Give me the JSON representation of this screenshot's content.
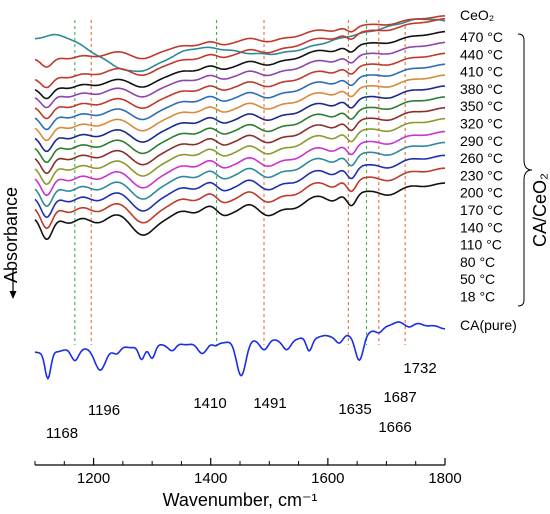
{
  "chart_data": {
    "type": "line",
    "xlabel": "Wavenumber, cm⁻¹",
    "ylabel": "Absorbance",
    "xlim": [
      1100,
      1800
    ],
    "xticks": [
      "1200",
      "1400",
      "1600",
      "1800"
    ],
    "xtick_values": [
      1200,
      1400,
      1600,
      1800
    ],
    "y_axis_ticks": false,
    "grid": false,
    "group_label": "CA/CeO₂",
    "peaks": [
      {
        "label": "1168",
        "x": 1168,
        "line_color": "#4cae4c"
      },
      {
        "label": "1196",
        "x": 1196,
        "line_color": "#e0703c"
      },
      {
        "label": "1410",
        "x": 1410,
        "line_color": "#4cae4c"
      },
      {
        "label": "1491",
        "x": 1491,
        "line_color": "#e0703c"
      },
      {
        "label": "1635",
        "x": 1635,
        "line_color": "#e0703c"
      },
      {
        "label": "1666",
        "x": 1666,
        "line_color": "#4cae4c"
      },
      {
        "label": "1687",
        "x": 1687,
        "line_color": "#e0703c"
      },
      {
        "label": "1732",
        "x": 1732,
        "line_color": "#e0703c"
      }
    ],
    "series": [
      {
        "name": "CeO₂",
        "color": "#2e8a9a",
        "baseline": 1.0,
        "kind": "ceo2"
      },
      {
        "name": "470 °C",
        "color": "#c0392b",
        "baseline": 0.0,
        "kind": "ads"
      },
      {
        "name": "440 °C",
        "color": "#c0392b",
        "baseline": 0.0,
        "kind": "ads"
      },
      {
        "name": "410 °C",
        "color": "#111111",
        "baseline": 0.0,
        "kind": "ads"
      },
      {
        "name": "380 °C",
        "color": "#8e44ad",
        "baseline": 0.0,
        "kind": "ads"
      },
      {
        "name": "350 °C",
        "color": "#c0392b",
        "baseline": 0.0,
        "kind": "ads"
      },
      {
        "name": "320 °C",
        "color": "#2e6cb5",
        "baseline": 0.0,
        "kind": "ads"
      },
      {
        "name": "290 °C",
        "color": "#d98a3a",
        "baseline": 0.0,
        "kind": "ads"
      },
      {
        "name": "260 °C",
        "color": "#1a2a8c",
        "baseline": 0.0,
        "kind": "ads"
      },
      {
        "name": "230 °C",
        "color": "#2e7d32",
        "baseline": 0.0,
        "kind": "ads"
      },
      {
        "name": "200 °C",
        "color": "#8b2e2e",
        "baseline": 0.0,
        "kind": "ads"
      },
      {
        "name": "170 °C",
        "color": "#8a9a2e",
        "baseline": 0.0,
        "kind": "ads"
      },
      {
        "name": "140 °C",
        "color": "#cc33cc",
        "baseline": 0.0,
        "kind": "ads"
      },
      {
        "name": "110 °C",
        "color": "#2e8a9a",
        "baseline": 0.0,
        "kind": "ads"
      },
      {
        "name": "80 °C",
        "color": "#1f2fb0",
        "baseline": 0.0,
        "kind": "ads"
      },
      {
        "name": "50 °C",
        "color": "#c0392b",
        "baseline": 0.0,
        "kind": "ads"
      },
      {
        "name": "18 °C",
        "color": "#111111",
        "baseline": 0.0,
        "kind": "ads"
      },
      {
        "name": "CA(pure)",
        "color": "#1a2ee6",
        "baseline": 0.0,
        "kind": "pure"
      }
    ]
  }
}
